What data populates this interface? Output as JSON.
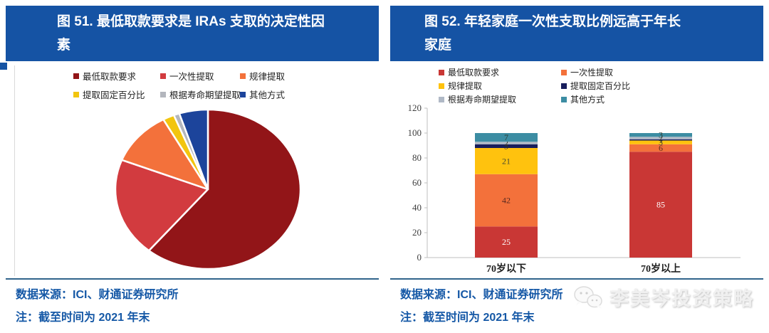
{
  "colors": {
    "title_bar_bg": "#1553A4",
    "title_text": "#FFFFFF",
    "source_text": "#1558A6",
    "divider": "#31648C",
    "axis": "#BFBFBF",
    "watermark_text_color": "#F0F0F0"
  },
  "left_panel": {
    "title_lines": {
      "0": "图 51. 最低取款要求是 IRAs 支取的决定性因",
      "1": "素"
    },
    "source_line1": "数据来源：ICI、财通证券研究所",
    "source_line2": "注：截至时间为 2021 年末"
  },
  "right_panel": {
    "title_lines": {
      "0": "图 52. 年轻家庭一次性支取比例远高于年长",
      "1": "家庭"
    },
    "source_line1": "数据来源：ICI、财通证券研究所",
    "source_line2": "注：截至时间为 2021 年末",
    "watermark": "李美岑投资策略"
  },
  "chart_data": [
    {
      "type": "pie",
      "title": "图 51. 最低取款要求是 IRAs 支取的决定性因素",
      "labels": [
        "最低取款要求",
        "一次性提取",
        "规律提取",
        "提取固定百分比",
        "根据寿命期望提取",
        "其他方式"
      ],
      "values": [
        61,
        20,
        11,
        2,
        1,
        5
      ],
      "unit": "percent (estimated from slice angles, no data labels shown)",
      "colors": [
        "#921518",
        "#D23B3F",
        "#F3713B",
        "#F2C50F",
        "#B3B6BD",
        "#1C449B"
      ],
      "legend_position": "top",
      "start_angle_deg": 0,
      "direction": "clockwise"
    },
    {
      "type": "bar",
      "stacked": true,
      "title": "图 52. 年轻家庭一次性支取比例远高于年长家庭",
      "categories": [
        "70岁以下",
        "70岁以上"
      ],
      "series": [
        {
          "name": "最低取款要求",
          "color": "#C93735",
          "values": [
            25,
            85
          ],
          "label_color": "#ffffff"
        },
        {
          "name": "一次性提取",
          "color": "#F3713B",
          "values": [
            42,
            6
          ],
          "label_color": "#5a2a20"
        },
        {
          "name": "规律提取",
          "color": "#FFC20E",
          "values": [
            21,
            3
          ],
          "label_color": "#4a4a30"
        },
        {
          "name": "提取固定百分比",
          "color": "#181E5C",
          "values": [
            3,
            1
          ],
          "label_color": "#33332a"
        },
        {
          "name": "根据寿命期望提取",
          "color": "#B0B9C6",
          "values": [
            2,
            2
          ],
          "label_color": "#33332a"
        },
        {
          "name": "其他方式",
          "color": "#3C8DA3",
          "values": [
            7,
            3
          ],
          "label_color": "#2d3a30"
        }
      ],
      "ylabel": "",
      "xlabel": "",
      "ylim": [
        0,
        120
      ],
      "ytick_step": 20,
      "grid": false,
      "legend_position": "top"
    }
  ]
}
